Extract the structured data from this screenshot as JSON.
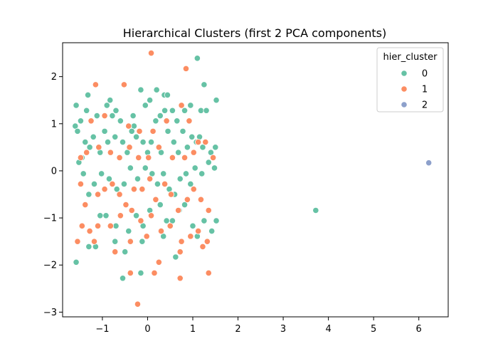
{
  "chart_data": {
    "type": "scatter",
    "title": "Hierarchical Clusters (first 2 PCA components)",
    "xlabel": "",
    "ylabel": "",
    "xlim": [
      -1.88,
      6.65
    ],
    "ylim": [
      -3.1,
      2.72
    ],
    "x_ticks": [
      -1,
      0,
      1,
      2,
      3,
      4,
      5,
      6
    ],
    "y_ticks": [
      -3,
      -2,
      -1,
      0,
      1,
      2
    ],
    "x_tick_labels": [
      "−1",
      "0",
      "1",
      "2",
      "3",
      "4",
      "5",
      "6"
    ],
    "y_tick_labels": [
      "−3",
      "−2",
      "−1",
      "0",
      "1",
      "2"
    ],
    "grid": false,
    "legend": {
      "title": "hier_cluster",
      "position": "top-right"
    },
    "series": [
      {
        "name": "0",
        "color": "#66c2a5",
        "points": [
          [
            -1.58,
            1.39
          ],
          [
            -1.6,
            0.95
          ],
          [
            -1.48,
            1.06
          ],
          [
            -1.32,
            1.61
          ],
          [
            -1.35,
            1.28
          ],
          [
            -1.12,
            1.17
          ],
          [
            -0.9,
            1.39
          ],
          [
            -0.83,
            1.5
          ],
          [
            -0.7,
            1.28
          ],
          [
            -0.78,
            1.17
          ],
          [
            -0.6,
            1.06
          ],
          [
            -0.32,
            1.17
          ],
          [
            -0.3,
            0.95
          ],
          [
            -0.15,
            1.72
          ],
          [
            -0.05,
            1.39
          ],
          [
            0.05,
            1.5
          ],
          [
            0.2,
            1.72
          ],
          [
            0.28,
            1.17
          ],
          [
            0.37,
            1.61
          ],
          [
            0.44,
            1.61
          ],
          [
            0.38,
            1.28
          ],
          [
            0.55,
            1.28
          ],
          [
            0.65,
            1.06
          ],
          [
            0.82,
            1.28
          ],
          [
            0.95,
            1.39
          ],
          [
            1.1,
            2.39
          ],
          [
            1.25,
            1.83
          ],
          [
            1.18,
            1.28
          ],
          [
            1.3,
            1.28
          ],
          [
            1.52,
            1.5
          ],
          [
            -1.55,
            0.84
          ],
          [
            -1.38,
            0.61
          ],
          [
            -1.28,
            0.5
          ],
          [
            -1.45,
            0.28
          ],
          [
            -1.52,
            0.18
          ],
          [
            -1.2,
            0.72
          ],
          [
            -1.05,
            0.39
          ],
          [
            -0.88,
            0.61
          ],
          [
            -0.95,
            0.84
          ],
          [
            -0.72,
            0.72
          ],
          [
            -0.55,
            0.61
          ],
          [
            -0.45,
            0.39
          ],
          [
            -0.35,
            0.84
          ],
          [
            -0.25,
            0.72
          ],
          [
            -0.1,
            0.61
          ],
          [
            0.0,
            0.39
          ],
          [
            0.08,
            0.61
          ],
          [
            0.18,
            1.06
          ],
          [
            0.3,
            0.39
          ],
          [
            0.45,
            0.84
          ],
          [
            0.58,
            0.61
          ],
          [
            0.68,
            0.39
          ],
          [
            0.78,
            0.84
          ],
          [
            0.88,
            0.5
          ],
          [
            0.98,
            0.72
          ],
          [
            1.08,
            0.61
          ],
          [
            1.15,
            0.72
          ],
          [
            1.22,
            0.5
          ],
          [
            1.35,
            0.18
          ],
          [
            1.4,
            0.39
          ],
          [
            1.48,
            0.06
          ],
          [
            1.5,
            0.5
          ],
          [
            -1.42,
            -0.06
          ],
          [
            -1.3,
            -0.5
          ],
          [
            -1.18,
            -0.28
          ],
          [
            -1.02,
            -0.06
          ],
          [
            -0.85,
            -0.17
          ],
          [
            -0.68,
            -0.39
          ],
          [
            -0.52,
            -0.28
          ],
          [
            -0.38,
            0.06
          ],
          [
            -0.22,
            -0.17
          ],
          [
            -0.05,
            0.06
          ],
          [
            0.1,
            -0.06
          ],
          [
            0.22,
            -0.28
          ],
          [
            0.35,
            -0.06
          ],
          [
            0.48,
            -0.39
          ],
          [
            0.6,
            -0.5
          ],
          [
            0.72,
            -0.17
          ],
          [
            0.85,
            -0.06
          ],
          [
            0.95,
            -0.28
          ],
          [
            1.05,
            0.06
          ],
          [
            1.2,
            -0.06
          ],
          [
            -1.05,
            -0.95
          ],
          [
            -0.92,
            -0.95
          ],
          [
            -0.7,
            -1.17
          ],
          [
            -0.42,
            -1.28
          ],
          [
            -0.25,
            -0.95
          ],
          [
            -0.1,
            -1.17
          ],
          [
            0.05,
            -0.84
          ],
          [
            0.28,
            -0.72
          ],
          [
            0.42,
            -1.06
          ],
          [
            0.55,
            -1.06
          ],
          [
            0.7,
            -0.84
          ],
          [
            0.82,
            -0.72
          ],
          [
            1.0,
            -1.17
          ],
          [
            1.1,
            -1.39
          ],
          [
            1.25,
            -1.06
          ],
          [
            1.42,
            -1.28
          ],
          [
            1.52,
            -1.06
          ],
          [
            -1.58,
            -1.94
          ],
          [
            -1.3,
            -1.61
          ],
          [
            -1.15,
            -1.61
          ],
          [
            -0.72,
            -1.5
          ],
          [
            -0.5,
            -1.72
          ],
          [
            -0.12,
            -1.5
          ],
          [
            0.35,
            -1.39
          ],
          [
            0.62,
            -1.83
          ],
          [
            -0.55,
            -2.28
          ],
          [
            -0.15,
            -2.17
          ],
          [
            3.72,
            -0.84
          ]
        ]
      },
      {
        "name": "1",
        "color": "#fc8d62",
        "points": [
          [
            0.08,
            2.5
          ],
          [
            -1.15,
            1.83
          ],
          [
            -0.52,
            1.83
          ],
          [
            0.85,
            2.17
          ],
          [
            -1.25,
            1.06
          ],
          [
            -0.95,
            1.17
          ],
          [
            -0.42,
            0.95
          ],
          [
            -0.18,
            0.84
          ],
          [
            0.12,
            0.84
          ],
          [
            0.42,
            1.06
          ],
          [
            0.75,
            1.39
          ],
          [
            0.92,
            1.06
          ],
          [
            1.12,
            0.61
          ],
          [
            -1.48,
            0.28
          ],
          [
            -1.35,
            0.39
          ],
          [
            -1.08,
            0.5
          ],
          [
            -0.82,
            0.39
          ],
          [
            -0.62,
            0.28
          ],
          [
            -0.4,
            0.5
          ],
          [
            -0.2,
            0.28
          ],
          [
            0.02,
            0.28
          ],
          [
            0.25,
            0.5
          ],
          [
            0.55,
            0.28
          ],
          [
            0.82,
            0.28
          ],
          [
            1.02,
            0.39
          ],
          [
            1.28,
            0.61
          ],
          [
            1.45,
            0.28
          ],
          [
            -1.48,
            -0.28
          ],
          [
            -1.38,
            -0.72
          ],
          [
            -1.1,
            -0.5
          ],
          [
            -0.95,
            -0.39
          ],
          [
            -0.78,
            -0.28
          ],
          [
            -0.62,
            -0.5
          ],
          [
            -0.48,
            -0.72
          ],
          [
            -0.3,
            -0.39
          ],
          [
            -0.12,
            -0.39
          ],
          [
            0.05,
            -0.17
          ],
          [
            0.18,
            -0.61
          ],
          [
            0.38,
            -0.28
          ],
          [
            0.52,
            -0.5
          ],
          [
            0.68,
            -0.84
          ],
          [
            0.88,
            -0.61
          ],
          [
            1.02,
            -0.39
          ],
          [
            1.18,
            -0.61
          ],
          [
            1.35,
            -0.84
          ],
          [
            -1.45,
            -1.17
          ],
          [
            -1.28,
            -1.28
          ],
          [
            -1.1,
            -1.17
          ],
          [
            -0.82,
            -1.17
          ],
          [
            -0.6,
            -0.95
          ],
          [
            -0.35,
            -0.84
          ],
          [
            -0.15,
            -1.06
          ],
          [
            0.08,
            -0.95
          ],
          [
            0.3,
            -1.28
          ],
          [
            0.5,
            -1.17
          ],
          [
            0.75,
            -1.5
          ],
          [
            0.95,
            -1.39
          ],
          [
            1.12,
            -1.28
          ],
          [
            1.32,
            -1.5
          ],
          [
            -1.55,
            -1.5
          ],
          [
            -1.18,
            -1.5
          ],
          [
            -0.72,
            -1.72
          ],
          [
            -0.38,
            -1.5
          ],
          [
            -0.02,
            -1.39
          ],
          [
            0.25,
            -1.94
          ],
          [
            0.72,
            -1.72
          ],
          [
            1.22,
            -1.61
          ],
          [
            -0.38,
            -2.17
          ],
          [
            0.15,
            -2.17
          ],
          [
            0.72,
            -2.28
          ],
          [
            1.35,
            -2.17
          ],
          [
            -0.22,
            -2.83
          ]
        ]
      },
      {
        "name": "2",
        "color": "#8da0cb",
        "points": [
          [
            6.22,
            0.17
          ]
        ]
      }
    ]
  }
}
